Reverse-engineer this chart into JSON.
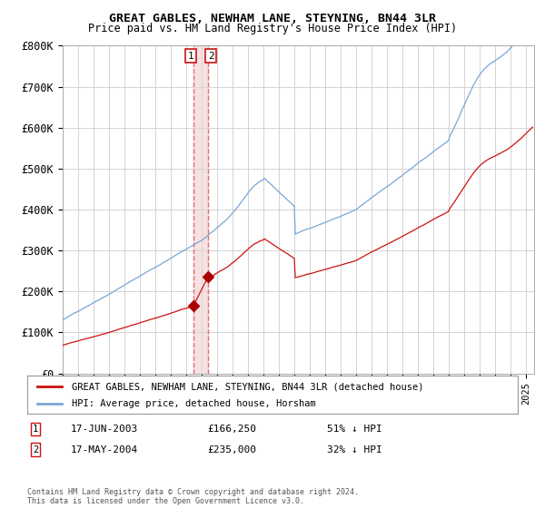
{
  "title": "GREAT GABLES, NEWHAM LANE, STEYNING, BN44 3LR",
  "subtitle": "Price paid vs. HM Land Registry's House Price Index (HPI)",
  "ylim": [
    0,
    800000
  ],
  "yticks": [
    0,
    100000,
    200000,
    300000,
    400000,
    500000,
    600000,
    700000,
    800000
  ],
  "ytick_labels": [
    "£0",
    "£100K",
    "£200K",
    "£300K",
    "£400K",
    "£500K",
    "£600K",
    "£700K",
    "£800K"
  ],
  "hpi_color": "#7aa6d4",
  "price_color": "#cc1111",
  "marker_color": "#aa0000",
  "dashed_line_color": "#dd6666",
  "shade_color": "#f0d0d0",
  "background_color": "#ffffff",
  "grid_color": "#cccccc",
  "transaction1_date": "17-JUN-2003",
  "transaction1_price": 166250,
  "transaction1_label": "51% ↓ HPI",
  "transaction2_date": "17-MAY-2004",
  "transaction2_price": 235000,
  "transaction2_label": "32% ↓ HPI",
  "t1_x": 2003.46,
  "t2_x": 2004.38,
  "footer": "Contains HM Land Registry data © Crown copyright and database right 2024.\nThis data is licensed under the Open Government Licence v3.0.",
  "legend1": "GREAT GABLES, NEWHAM LANE, STEYNING, BN44 3LR (detached house)",
  "legend2": "HPI: Average price, detached house, Horsham",
  "xmin": 1995,
  "xmax": 2025.5
}
